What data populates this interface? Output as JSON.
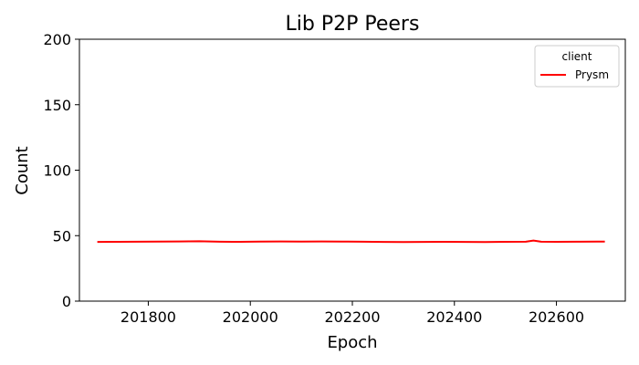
{
  "chart_data": {
    "type": "line",
    "title": "Lib P2P Peers",
    "xlabel": "Epoch",
    "ylabel": "Count",
    "xlim": [
      201665,
      202735
    ],
    "ylim": [
      0,
      200
    ],
    "xticks": [
      201800,
      202000,
      202200,
      202400,
      202600
    ],
    "xtick_labels": [
      "201800",
      "202000",
      "202200",
      "202400",
      "202600"
    ],
    "yticks": [
      0,
      50,
      100,
      150,
      200
    ],
    "ytick_labels": [
      "0",
      "50",
      "100",
      "150",
      "200"
    ],
    "grid": false,
    "legend": {
      "title": "client",
      "placement": "top-right"
    },
    "series": [
      {
        "name": "Prysm",
        "color": "#ff0000",
        "x": [
          201700,
          201740,
          201780,
          201820,
          201860,
          201900,
          201940,
          201980,
          202020,
          202060,
          202100,
          202140,
          202180,
          202220,
          202260,
          202300,
          202340,
          202380,
          202420,
          202460,
          202500,
          202540,
          202555,
          202570,
          202600,
          202640,
          202680,
          202695
        ],
        "y": [
          45.2,
          45.3,
          45.4,
          45.5,
          45.6,
          45.7,
          45.4,
          45.3,
          45.5,
          45.6,
          45.5,
          45.6,
          45.5,
          45.4,
          45.2,
          45.1,
          45.2,
          45.3,
          45.2,
          45.1,
          45.3,
          45.4,
          46.3,
          45.4,
          45.3,
          45.4,
          45.5,
          45.5
        ]
      }
    ]
  }
}
